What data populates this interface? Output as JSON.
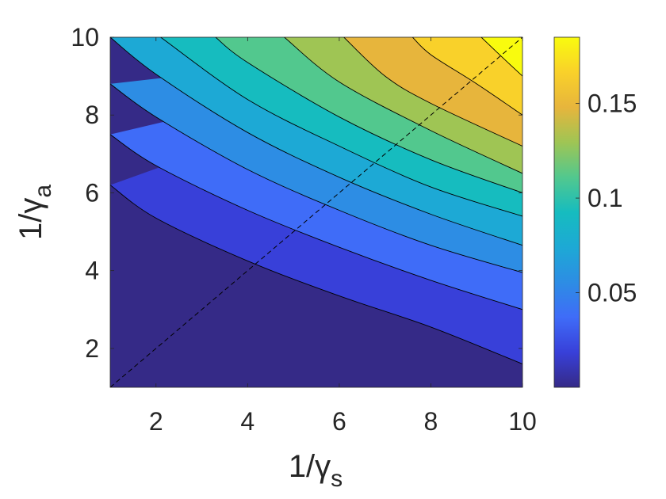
{
  "chart_data": {
    "type": "contour",
    "xlabel": "1/γ",
    "xlabel_sub": "s",
    "ylabel": "1/γ",
    "ylabel_sub": "a",
    "xlim": [
      1,
      10
    ],
    "ylim": [
      1,
      10
    ],
    "x_ticks": [
      2,
      4,
      6,
      8,
      10
    ],
    "y_ticks": [
      2,
      4,
      6,
      8,
      10
    ],
    "colorbar": {
      "min": 0.0,
      "max": 0.185,
      "ticks": [
        0.05,
        0.1,
        0.15
      ],
      "tick_labels": [
        "0.05",
        "0.1",
        "0.15"
      ],
      "colormap": "parula"
    },
    "levels": [
      0.0167,
      0.0333,
      0.05,
      0.0667,
      0.0833,
      0.1,
      0.1167,
      0.1333,
      0.15,
      0.1667
    ],
    "fill_colors": [
      "#352a87",
      "#3840d9",
      "#3f6cf8",
      "#2d8de4",
      "#1da9d5",
      "#16bcbf",
      "#52c88e",
      "#9fc554",
      "#e7b53c",
      "#f9d12a",
      "#f9fb0e"
    ],
    "contour_lines": [
      {
        "level": 0.0167,
        "x": [
          1,
          2,
          4,
          6,
          8,
          10
        ],
        "y": [
          6.2,
          5.35,
          4.25,
          3.35,
          2.55,
          1.6
        ]
      },
      {
        "level": 0.0333,
        "x": [
          1,
          2,
          4,
          6,
          8,
          10
        ],
        "y": [
          7.5,
          6.7,
          5.55,
          4.6,
          3.75,
          3.0
        ]
      },
      {
        "level": 0.05,
        "x": [
          1,
          2,
          4,
          6,
          8,
          10
        ],
        "y": [
          8.8,
          7.95,
          6.6,
          5.55,
          4.65,
          3.95
        ]
      },
      {
        "level": 0.0667,
        "x": [
          1,
          2,
          4,
          6,
          8,
          10
        ],
        "y": [
          10.0,
          9.05,
          7.55,
          6.4,
          5.45,
          4.65
        ]
      },
      {
        "level": 0.0833,
        "x": [
          2.1,
          4,
          6,
          8,
          10
        ],
        "y": [
          10.0,
          8.4,
          7.2,
          6.15,
          5.4
        ]
      },
      {
        "level": 0.1,
        "x": [
          3.3,
          4,
          6,
          8,
          10
        ],
        "y": [
          10.0,
          9.35,
          7.95,
          6.85,
          6.0
        ]
      },
      {
        "level": 0.1167,
        "x": [
          4.8,
          6,
          8,
          10
        ],
        "y": [
          10.0,
          8.85,
          7.6,
          6.5
        ]
      },
      {
        "level": 0.1333,
        "x": [
          6.1,
          7,
          8,
          10
        ],
        "y": [
          10.0,
          9.0,
          8.3,
          7.2
        ]
      },
      {
        "level": 0.15,
        "x": [
          7.6,
          8,
          9,
          10
        ],
        "y": [
          10.0,
          9.55,
          8.8,
          8.0
        ]
      },
      {
        "level": 0.1667,
        "x": [
          9.1,
          9.5,
          10
        ],
        "y": [
          10.0,
          9.55,
          9.0
        ]
      }
    ],
    "reference_line": {
      "style": "dashed",
      "x": [
        1,
        10
      ],
      "y": [
        1,
        10
      ]
    }
  }
}
